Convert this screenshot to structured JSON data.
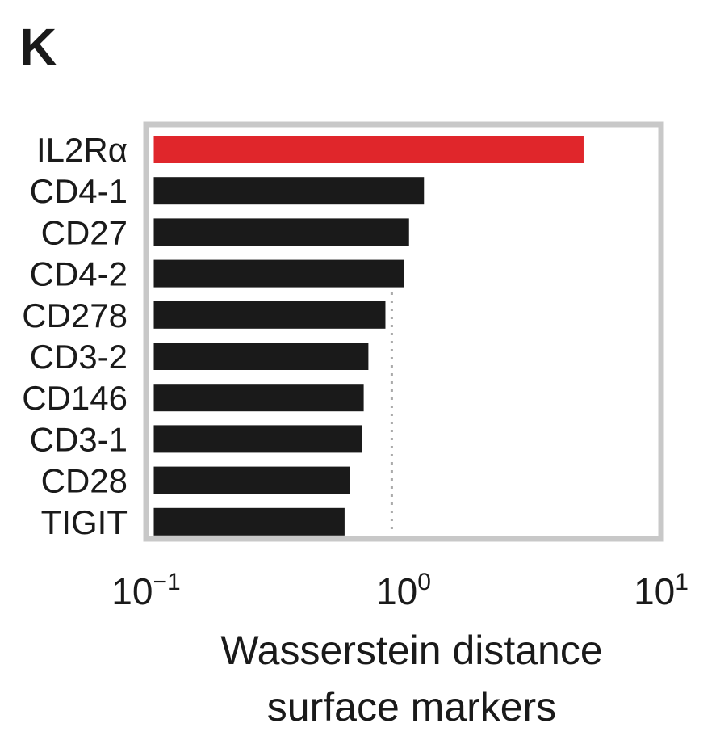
{
  "panel_label": "K",
  "chart_data": {
    "type": "bar",
    "orientation": "horizontal",
    "categories": [
      "IL2Rα",
      "CD4-1",
      "CD27",
      "CD4-2",
      "CD278",
      "CD3-2",
      "CD146",
      "CD3-1",
      "CD28",
      "TIGIT"
    ],
    "values": [
      5.0,
      1.2,
      1.05,
      1.0,
      0.85,
      0.73,
      0.7,
      0.69,
      0.62,
      0.59
    ],
    "highlight_index": 0,
    "colors": {
      "highlight": "#e0262b",
      "default": "#1a1a1a",
      "frame": "#c8c8c8",
      "reference_line": "#aaaaaa"
    },
    "xscale": "log",
    "xlim": [
      0.1,
      10
    ],
    "xticks": [
      {
        "value": 0.1,
        "base": "10",
        "exp": "−1"
      },
      {
        "value": 1,
        "base": "10",
        "exp": "0"
      },
      {
        "value": 10,
        "base": "10",
        "exp": "1"
      }
    ],
    "reference_line_x": 0.9,
    "xlabel": [
      "Wasserstein distance",
      "surface markers"
    ],
    "ylabel": "",
    "title": "",
    "legend": "none",
    "grid": false
  }
}
